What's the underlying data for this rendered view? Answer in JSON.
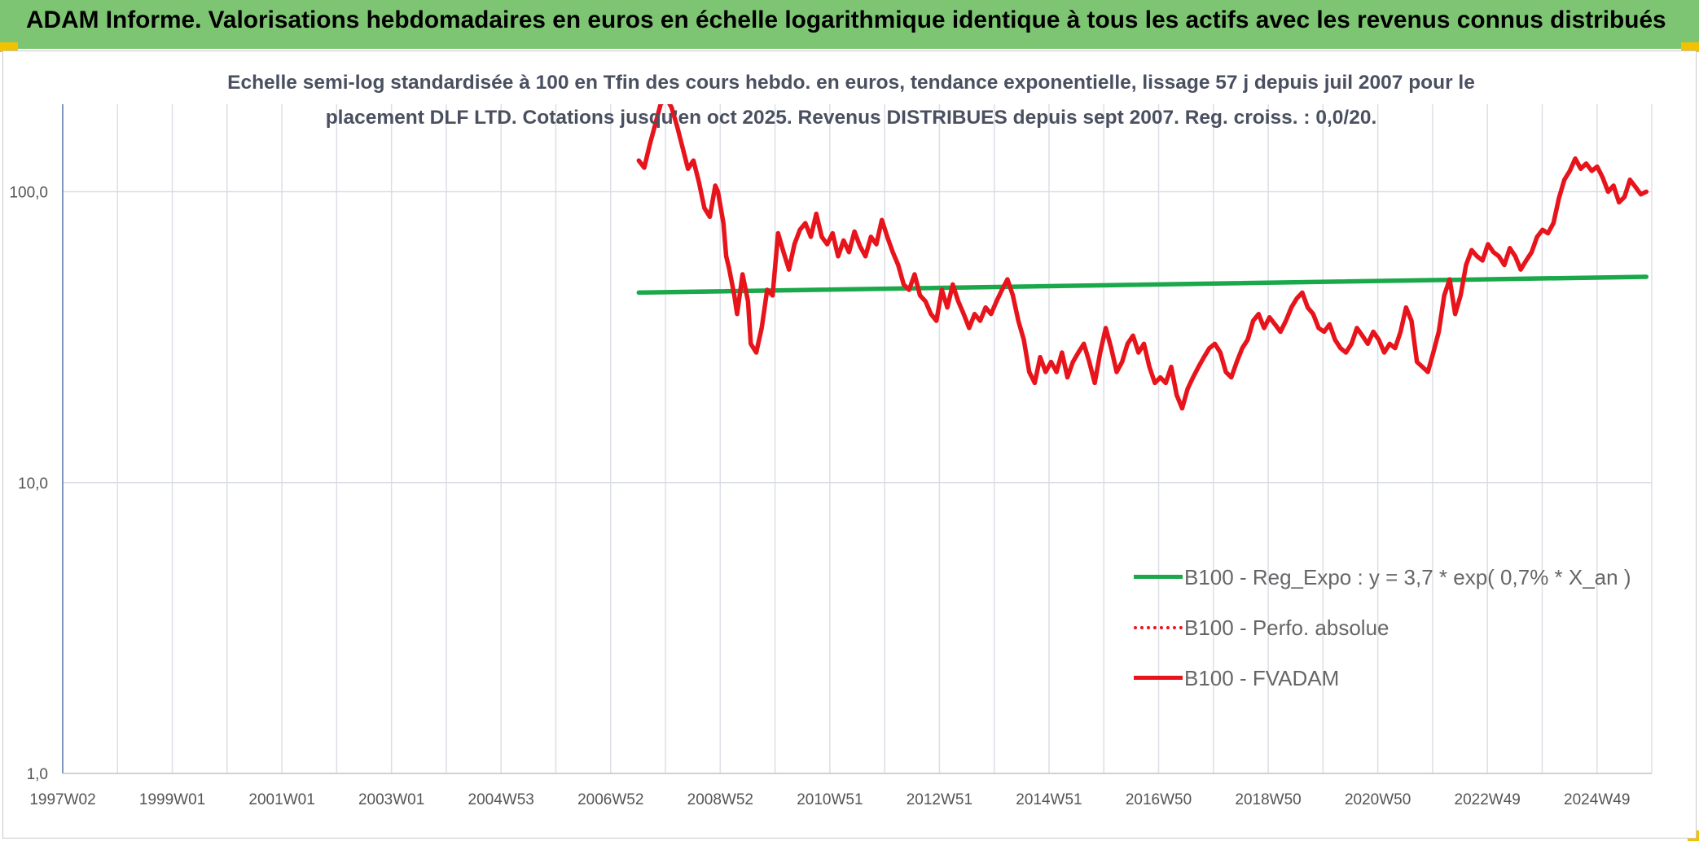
{
  "header": {
    "title": "ADAM Informe. Valorisations hebdomadaires en euros en échelle logarithmique identique à tous les actifs avec les revenus connus distribués"
  },
  "chart_data": {
    "type": "line",
    "title_line1": "Echelle semi-log standardisée à 100 en Tfin des cours hebdo. en euros, tendance exponentielle, lissage 57 j depuis juil 2007 pour le",
    "title_line2": "placement DLF LTD. Cotations jusqu'en oct 2025. Revenus DISTRIBUES depuis sept 2007. Reg. croiss. : 0,0/20.",
    "y_scale": "log",
    "ylim": [
      1,
      200
    ],
    "y_ticks": [
      "100,0",
      "10,0",
      "1,0"
    ],
    "x_ticks": [
      "1997W02",
      "1999W01",
      "2001W01",
      "2003W01",
      "2004W53",
      "2006W52",
      "2008W52",
      "2010W51",
      "2012W51",
      "2014W51",
      "2016W50",
      "2018W50",
      "2020W50",
      "2022W49",
      "2024W49"
    ],
    "xlim": [
      1997.0,
      2026.1
    ],
    "grid": true,
    "legend_position": "bottom-right",
    "colors": {
      "trend": "#1aa84a",
      "perf": "#e8141c",
      "fvadam": "#e8141c"
    },
    "series": [
      {
        "name": "B100 - Reg_Expo : y = 3,7 * exp( 0,7% *  X_an )",
        "style": "solid-green",
        "x": [
          2007.55,
          2026.0
        ],
        "y": [
          45,
          51
        ]
      },
      {
        "name": "B100 - Perfo. absolue",
        "style": "dotted-red",
        "x": [],
        "y": []
      },
      {
        "name": "B100 - FVADAM",
        "style": "solid-red",
        "x": [
          2007.55,
          2007.65,
          2007.75,
          2007.85,
          2007.95,
          2008.05,
          2008.15,
          2008.25,
          2008.35,
          2008.45,
          2008.55,
          2008.65,
          2008.75,
          2008.85,
          2008.95,
          2009.0,
          2009.1,
          2009.15,
          2009.2,
          2009.3,
          2009.35,
          2009.45,
          2009.55,
          2009.6,
          2009.7,
          2009.8,
          2009.9,
          2010.0,
          2010.1,
          2010.2,
          2010.3,
          2010.4,
          2010.5,
          2010.6,
          2010.7,
          2010.8,
          2010.9,
          2011.0,
          2011.1,
          2011.2,
          2011.3,
          2011.4,
          2011.5,
          2011.6,
          2011.7,
          2011.8,
          2011.9,
          2012.0,
          2012.1,
          2012.2,
          2012.3,
          2012.4,
          2012.5,
          2012.6,
          2012.7,
          2012.8,
          2012.9,
          2013.0,
          2013.1,
          2013.2,
          2013.3,
          2013.4,
          2013.5,
          2013.6,
          2013.7,
          2013.8,
          2013.9,
          2014.0,
          2014.1,
          2014.2,
          2014.3,
          2014.4,
          2014.5,
          2014.6,
          2014.7,
          2014.8,
          2014.9,
          2015.0,
          2015.1,
          2015.2,
          2015.3,
          2015.4,
          2015.5,
          2015.6,
          2015.7,
          2015.8,
          2015.9,
          2016.0,
          2016.1,
          2016.2,
          2016.3,
          2016.4,
          2016.5,
          2016.6,
          2016.7,
          2016.8,
          2016.9,
          2017.0,
          2017.1,
          2017.2,
          2017.3,
          2017.4,
          2017.5,
          2017.6,
          2017.7,
          2017.8,
          2017.9,
          2018.0,
          2018.1,
          2018.2,
          2018.3,
          2018.4,
          2018.5,
          2018.6,
          2018.7,
          2018.8,
          2018.9,
          2019.0,
          2019.1,
          2019.2,
          2019.3,
          2019.4,
          2019.5,
          2019.6,
          2019.7,
          2019.8,
          2019.9,
          2020.0,
          2020.1,
          2020.2,
          2020.3,
          2020.4,
          2020.5,
          2020.6,
          2020.7,
          2020.8,
          2020.9,
          2021.0,
          2021.1,
          2021.2,
          2021.3,
          2021.4,
          2021.5,
          2021.6,
          2021.7,
          2021.8,
          2021.9,
          2022.0,
          2022.1,
          2022.2,
          2022.3,
          2022.4,
          2022.5,
          2022.6,
          2022.7,
          2022.8,
          2022.9,
          2023.0,
          2023.1,
          2023.2,
          2023.3,
          2023.4,
          2023.5,
          2023.6,
          2023.7,
          2023.8,
          2023.9,
          2024.0,
          2024.1,
          2024.2,
          2024.3,
          2024.4,
          2024.5,
          2024.6,
          2024.7,
          2024.8,
          2024.9,
          2025.0,
          2025.1,
          2025.2,
          2025.3,
          2025.4,
          2025.5,
          2025.6,
          2025.7,
          2025.8,
          2025.9,
          2026.0
        ],
        "y": [
          128,
          121,
          145,
          170,
          200,
          210,
          195,
          168,
          142,
          120,
          128,
          108,
          88,
          82,
          105,
          100,
          78,
          60,
          55,
          44,
          38,
          52,
          42,
          30,
          28,
          34,
          46,
          44,
          72,
          62,
          54,
          66,
          74,
          78,
          70,
          84,
          70,
          66,
          72,
          60,
          68,
          62,
          73,
          65,
          60,
          70,
          66,
          80,
          70,
          62,
          56,
          48,
          46,
          52,
          44,
          42,
          38,
          36,
          46,
          40,
          48,
          42,
          38,
          34,
          38,
          36,
          40,
          38,
          42,
          46,
          50,
          44,
          36,
          31,
          24,
          22,
          27,
          24,
          26,
          24,
          28,
          23,
          26,
          28,
          30,
          26,
          22,
          28,
          34,
          29,
          24,
          26,
          30,
          32,
          28,
          30,
          25,
          22,
          23,
          22,
          25,
          20,
          18,
          21,
          23,
          25,
          27,
          29,
          30,
          28,
          24,
          23,
          26,
          29,
          31,
          36,
          38,
          34,
          37,
          35,
          33,
          36,
          40,
          43,
          45,
          40,
          38,
          34,
          33,
          35,
          31,
          29,
          28,
          30,
          34,
          32,
          30,
          33,
          31,
          28,
          30,
          29,
          33,
          40,
          36,
          26,
          25,
          24,
          28,
          33,
          44,
          50,
          38,
          44,
          56,
          63,
          60,
          58,
          66,
          62,
          60,
          56,
          64,
          60,
          54,
          58,
          62,
          70,
          74,
          72,
          78,
          95,
          110,
          118,
          130,
          120,
          125,
          118,
          122,
          112,
          100,
          105,
          92,
          96,
          110,
          104,
          98,
          100
        ]
      }
    ]
  }
}
